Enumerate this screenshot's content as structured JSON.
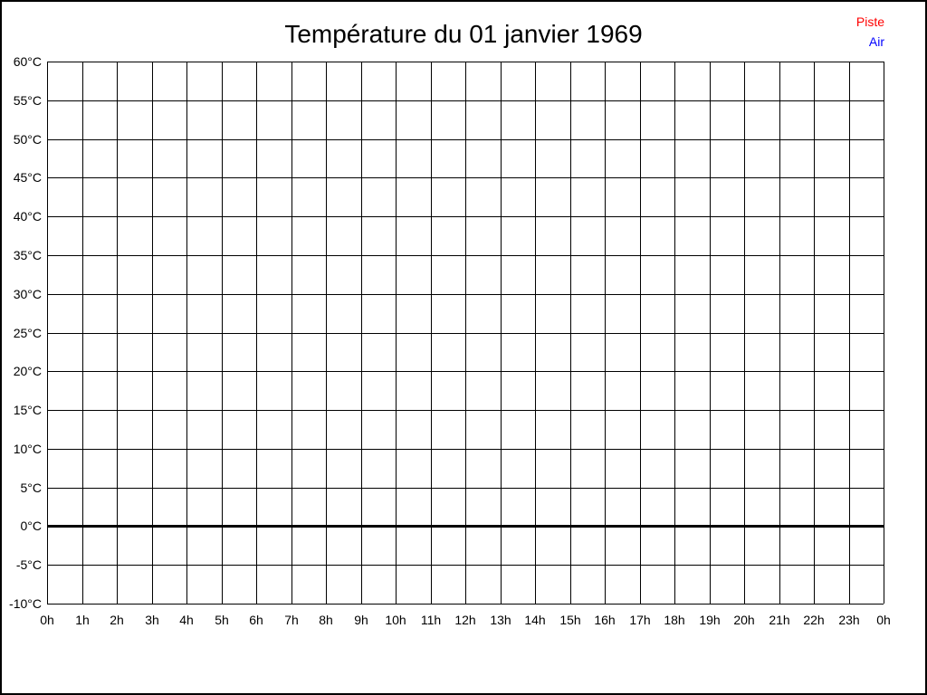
{
  "window": {
    "background": "#ffffff",
    "border_color": "#000000"
  },
  "title": "Température du 01 janvier 1969",
  "legend": {
    "position": "top-right",
    "items": [
      {
        "label": "Piste",
        "color": "#ff0000"
      },
      {
        "label": "Air",
        "color": "#0000ff"
      }
    ]
  },
  "chart_data": {
    "type": "line",
    "title": "Température du 01 janvier 1969",
    "xlabel": "",
    "ylabel": "",
    "x_tick_labels": [
      "0h",
      "1h",
      "2h",
      "3h",
      "4h",
      "5h",
      "6h",
      "7h",
      "8h",
      "9h",
      "10h",
      "11h",
      "12h",
      "13h",
      "14h",
      "15h",
      "16h",
      "17h",
      "18h",
      "19h",
      "20h",
      "21h",
      "22h",
      "23h",
      "0h"
    ],
    "y_tick_values": [
      60,
      55,
      50,
      45,
      40,
      35,
      30,
      25,
      20,
      15,
      10,
      5,
      0,
      -5,
      -10
    ],
    "y_tick_labels": [
      "60°C",
      "55°C",
      "50°C",
      "45°C",
      "40°C",
      "35°C",
      "30°C",
      "25°C",
      "20°C",
      "15°C",
      "10°C",
      "5°C",
      "0°C",
      "-5°C",
      "-10°C"
    ],
    "ylim": [
      -10,
      60
    ],
    "y_step": 5,
    "grid": true,
    "zero_line_value": 0,
    "legend_position": "top-right",
    "series": [
      {
        "name": "Piste",
        "color": "#ff0000",
        "values": []
      },
      {
        "name": "Air",
        "color": "#0000ff",
        "values": []
      }
    ]
  }
}
